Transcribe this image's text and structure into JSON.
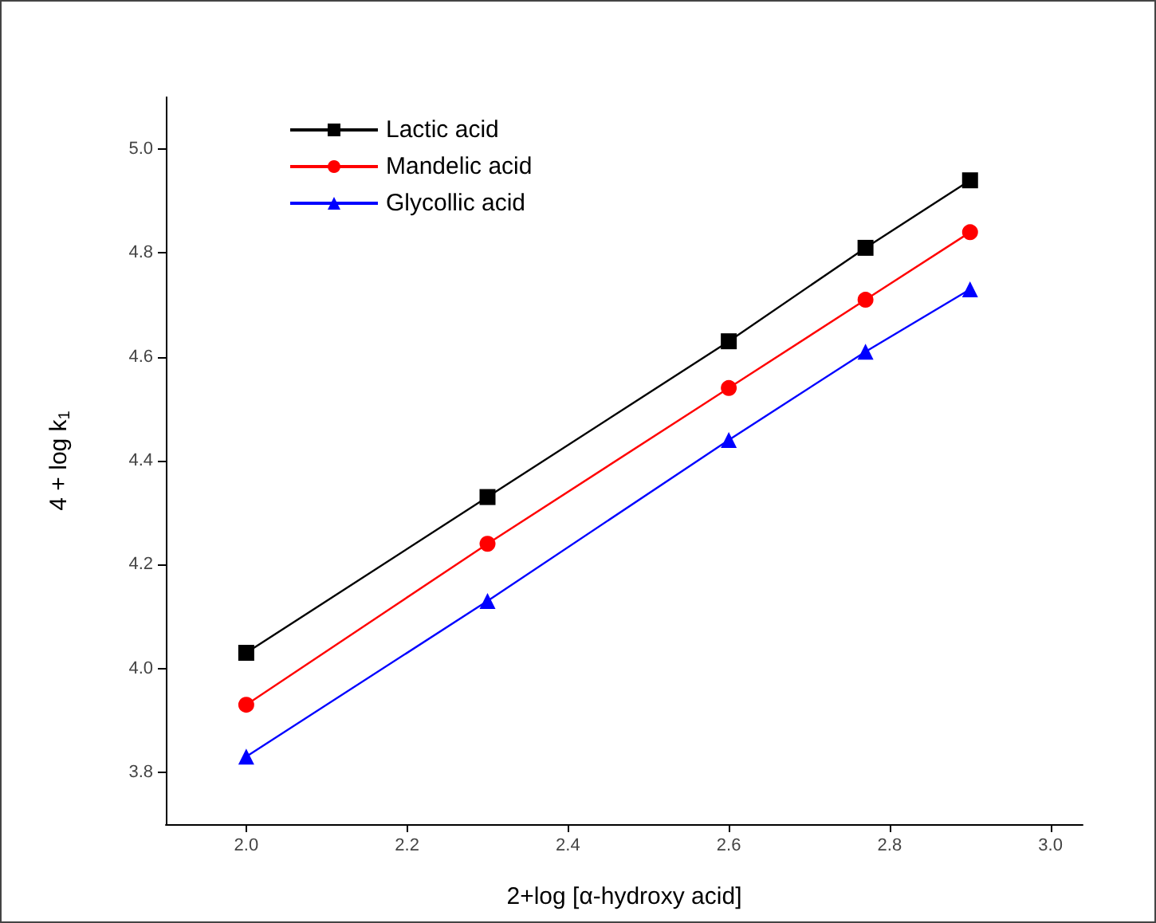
{
  "chart_data": {
    "type": "line",
    "xlabel": "2+log [α-hydroxy acid]",
    "ylabel": "4 + log k$_{1}$",
    "x": [
      2.0,
      2.3,
      2.6,
      2.77,
      2.9
    ],
    "series": [
      {
        "name": "Lactic acid",
        "color": "#000000",
        "marker": "square",
        "values": [
          4.03,
          4.33,
          4.63,
          4.81,
          4.94
        ]
      },
      {
        "name": "Mandelic acid",
        "color": "#ff0000",
        "marker": "circle",
        "values": [
          3.93,
          4.24,
          4.54,
          4.71,
          4.84
        ]
      },
      {
        "name": "Glycollic acid",
        "color": "#0000ff",
        "marker": "triangle",
        "values": [
          3.83,
          4.13,
          4.44,
          4.61,
          4.73
        ]
      }
    ],
    "xlim": [
      1.9,
      3.04
    ],
    "xticks": [
      {
        "value": 2,
        "label": "2.0"
      },
      2.2,
      2.4,
      2.6,
      2.8,
      {
        "value": 3,
        "label": "3.0"
      }
    ],
    "ylim": [
      3.7,
      5.1
    ],
    "yticks": [
      3.8,
      {
        "value": 4,
        "label": "4.0"
      },
      4.2,
      4.4,
      4.6,
      4.8,
      {
        "value": 5,
        "label": "5.0"
      }
    ],
    "grid": false,
    "legend": "top left",
    "line_style": "solid"
  }
}
